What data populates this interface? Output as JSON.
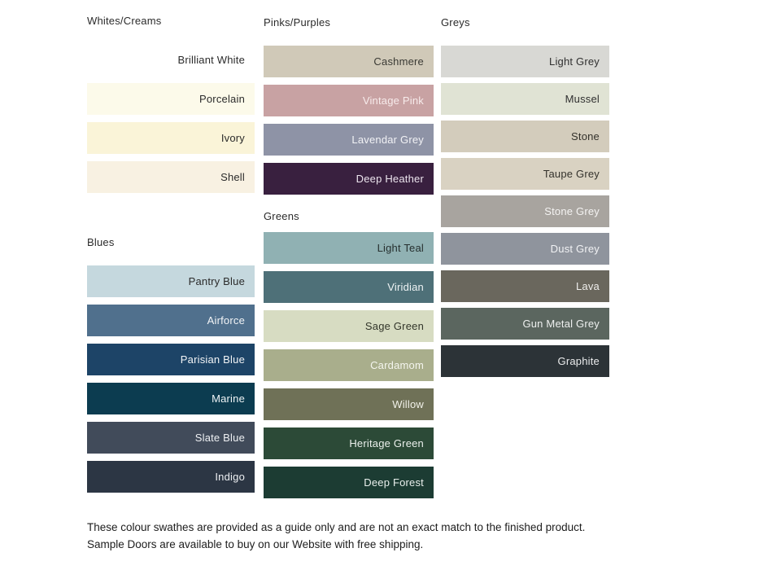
{
  "columns": [
    {
      "sections": [
        {
          "title": "Whites/Creams",
          "swatches": [
            {
              "name": "Brilliant White",
              "hex": "#ffffff",
              "label_color": "#2b2b2b"
            },
            {
              "name": "Porcelain",
              "hex": "#fcfaea",
              "label_color": "#2b2b2b"
            },
            {
              "name": "Ivory",
              "hex": "#faf4d8",
              "label_color": "#2b2b2b"
            },
            {
              "name": "Shell",
              "hex": "#f8f1e2",
              "label_color": "#2b2b2b"
            }
          ]
        },
        {
          "title": "Blues",
          "swatches": [
            {
              "name": "Pantry Blue",
              "hex": "#c5d8de",
              "label_color": "#2b2b2b"
            },
            {
              "name": "Airforce",
              "hex": "#50708d",
              "label_color": "#f2f4f6"
            },
            {
              "name": "Parisian Blue",
              "hex": "#1d4467",
              "label_color": "#f2f4f6"
            },
            {
              "name": "Marine",
              "hex": "#0c3c50",
              "label_color": "#eef3f5"
            },
            {
              "name": "Slate Blue",
              "hex": "#414b5a",
              "label_color": "#eef0f3"
            },
            {
              "name": "Indigo",
              "hex": "#2c3644",
              "label_color": "#eef0f3"
            }
          ]
        }
      ]
    },
    {
      "sections": [
        {
          "title": "Pinks/Purples",
          "swatches": [
            {
              "name": "Cashmere",
              "hex": "#d0c9b8",
              "label_color": "#3a3a34"
            },
            {
              "name": "Vintage Pink",
              "hex": "#c8a2a3",
              "label_color": "#f7ebeb"
            },
            {
              "name": "Lavendar Grey",
              "hex": "#8e93a6",
              "label_color": "#f1f2f5"
            },
            {
              "name": "Deep Heather",
              "hex": "#39203f",
              "label_color": "#ece5ee"
            }
          ]
        },
        {
          "title": "Greens",
          "swatches": [
            {
              "name": "Light Teal",
              "hex": "#90b1b3",
              "label_color": "#26302f"
            },
            {
              "name": "Viridian",
              "hex": "#4e7078",
              "label_color": "#eef3f4"
            },
            {
              "name": "Sage Green",
              "hex": "#d7dcc2",
              "label_color": "#33362b"
            },
            {
              "name": "Cardamom",
              "hex": "#a9ae8c",
              "label_color": "#f4f5ee"
            },
            {
              "name": "Willow",
              "hex": "#6f7157",
              "label_color": "#f1f1e9"
            },
            {
              "name": "Heritage Green",
              "hex": "#2c4a37",
              "label_color": "#ebf0ec"
            },
            {
              "name": "Deep Forest",
              "hex": "#1c3c33",
              "label_color": "#e9efec"
            }
          ]
        }
      ]
    },
    {
      "sections": [
        {
          "title": "Greys",
          "swatches": [
            {
              "name": "Light Grey",
              "hex": "#d8d8d4",
              "label_color": "#303030"
            },
            {
              "name": "Mussel",
              "hex": "#e0e3d4",
              "label_color": "#303030"
            },
            {
              "name": "Stone",
              "hex": "#d3ccbc",
              "label_color": "#34322c"
            },
            {
              "name": "Taupe Grey",
              "hex": "#d9d2c2",
              "label_color": "#34322c"
            },
            {
              "name": "Stone Grey",
              "hex": "#a8a49f",
              "label_color": "#f4f3f2"
            },
            {
              "name": "Dust Grey",
              "hex": "#8f949d",
              "label_color": "#f1f2f4"
            },
            {
              "name": "Lava",
              "hex": "#6a675d",
              "label_color": "#efeeec"
            },
            {
              "name": "Gun Metal Grey",
              "hex": "#5b665f",
              "label_color": "#eef0ef"
            },
            {
              "name": "Graphite",
              "hex": "#2c3337",
              "label_color": "#ebeced"
            }
          ]
        }
      ]
    }
  ],
  "footer": "These colour swathes are provided as a guide only and are not an exact match to the finished product.  Sample Doors are available to buy on our Website with free shipping."
}
